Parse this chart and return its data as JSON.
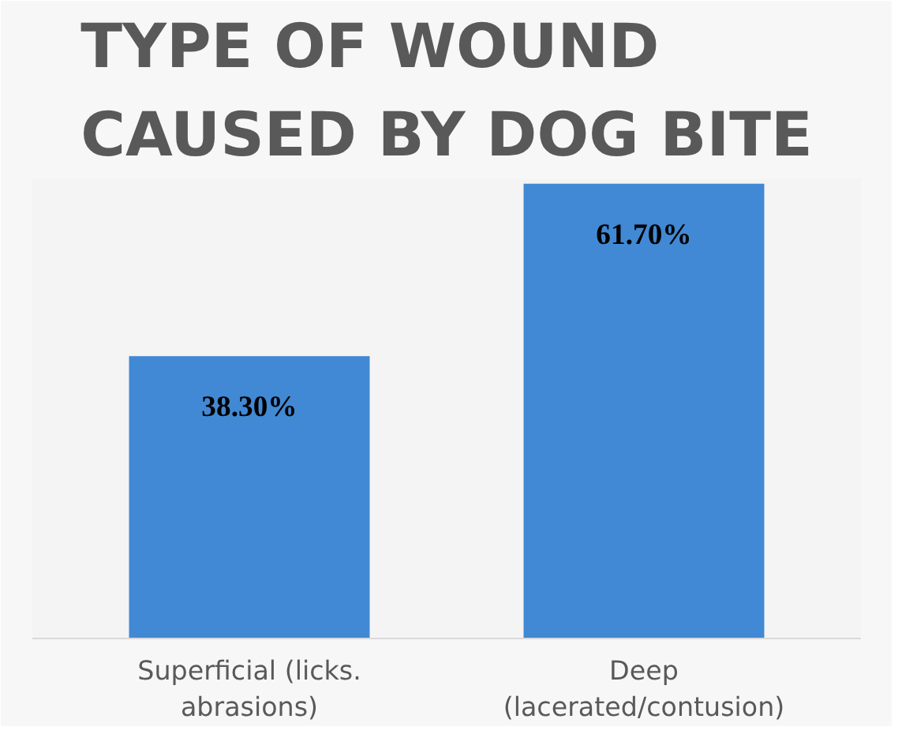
{
  "chart_data": {
    "type": "bar",
    "title": "TYPE OF WOUND CAUSED BY DOG BITE",
    "categories": [
      "Superficial (licks. abrasions)",
      "Deep (lacerated/contusion)"
    ],
    "values": [
      38.3,
      61.7
    ],
    "value_labels": [
      "38.30%",
      "61.70%"
    ],
    "color": "#4189d4"
  }
}
